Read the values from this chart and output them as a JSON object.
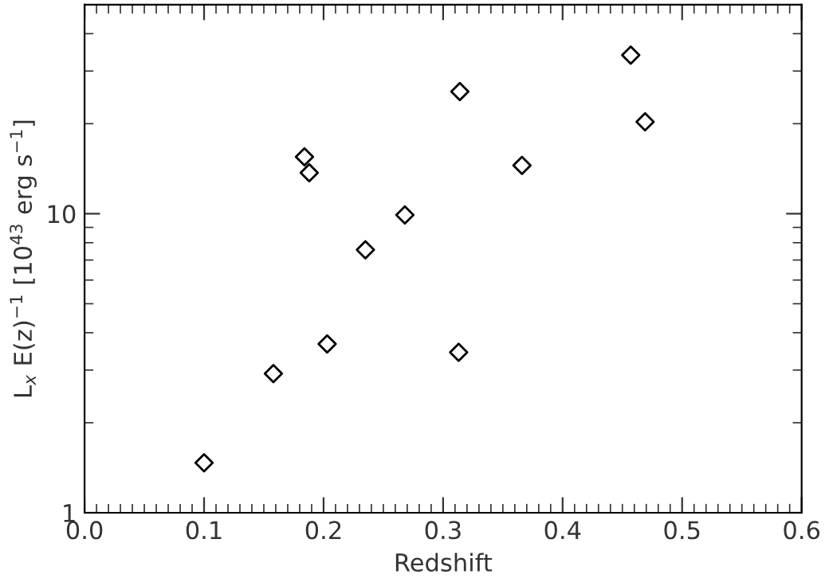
{
  "chart_data": {
    "type": "scatter",
    "xlabel": "Redshift",
    "ylabel": "L$_{x}$ E(z)$^{−1}$ [10$^{43}$ erg s$^{−1}$]",
    "x": [
      0.1,
      0.158,
      0.184,
      0.188,
      0.203,
      0.235,
      0.268,
      0.314,
      0.313,
      0.366,
      0.457,
      0.469
    ],
    "values": [
      1.47,
      2.92,
      15.5,
      13.7,
      3.67,
      7.57,
      9.9,
      25.6,
      3.44,
      14.5,
      33.9,
      20.3
    ],
    "color": "#000000",
    "marker": "diamond",
    "log": "y",
    "xlim": [
      0.0,
      0.6
    ],
    "xticks": [
      {
        "value": 0.0,
        "label": "0.0"
      },
      0.1,
      0.2,
      0.3,
      0.4,
      0.5,
      0.6
    ],
    "ylim": [
      1,
      50
    ],
    "yticks": [
      1,
      10
    ],
    "grid": false
  }
}
